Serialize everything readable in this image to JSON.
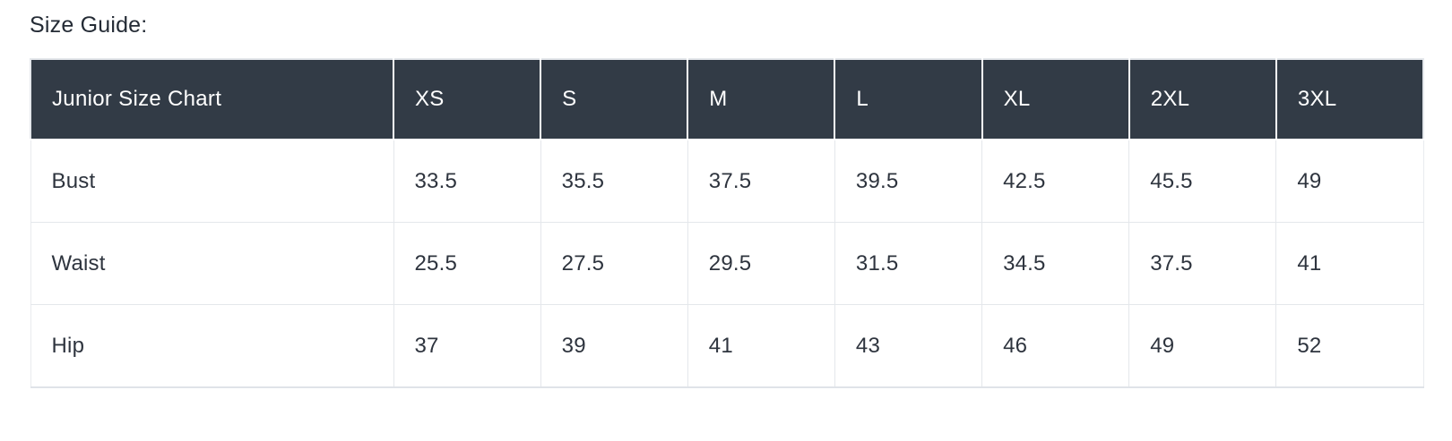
{
  "title": "Size Guide:",
  "colors": {
    "header_background": "#323b46",
    "header_text": "#ffffff",
    "body_text": "#2e343e",
    "border": "#e4e7eb"
  },
  "table": {
    "columns": [
      "Junior Size Chart",
      "XS",
      "S",
      "M",
      "L",
      "XL",
      "2XL",
      "3XL"
    ],
    "rows": [
      {
        "label": "Bust",
        "values": [
          "33.5",
          "35.5",
          "37.5",
          "39.5",
          "42.5",
          "45.5",
          "49"
        ]
      },
      {
        "label": "Waist",
        "values": [
          "25.5",
          "27.5",
          "29.5",
          "31.5",
          "34.5",
          "37.5",
          "41"
        ]
      },
      {
        "label": "Hip",
        "values": [
          "37",
          "39",
          "41",
          "43",
          "46",
          "49",
          "52"
        ]
      }
    ]
  }
}
